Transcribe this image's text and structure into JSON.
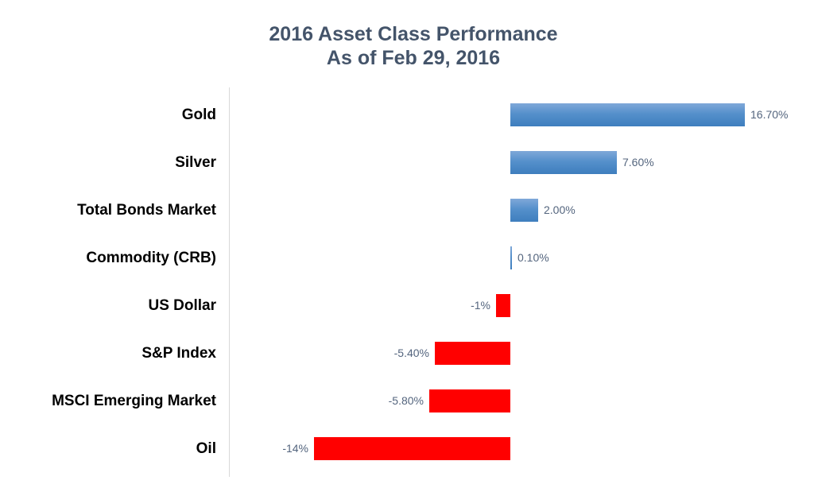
{
  "title": {
    "line1": "2016 Asset Class Performance",
    "line2": "As of Feb 29, 2016"
  },
  "chart_data": {
    "type": "bar",
    "orientation": "horizontal",
    "title": "2016 Asset Class Performance",
    "subtitle": "As of Feb 29, 2016",
    "categories": [
      "Gold",
      "Silver",
      "Total Bonds Market",
      "Commodity (CRB)",
      "US Dollar",
      "S&P Index",
      "MSCI Emerging Market",
      "Oil"
    ],
    "values": [
      16.7,
      7.6,
      2.0,
      0.1,
      -1.0,
      -5.4,
      -5.8,
      -14.0
    ],
    "value_labels": [
      "16.70%",
      "7.60%",
      "2.00%",
      "0.10%",
      "-1%",
      "-5.40%",
      "-5.80%",
      "-14%"
    ],
    "unit": "percent",
    "xlim": [
      -16,
      18
    ],
    "grid": false,
    "legend": false,
    "colors": {
      "positive_gradient_top": "#7FA8D9",
      "positive_gradient_bottom": "#3E7EBE",
      "negative": "#FF0000",
      "title": "#44546A",
      "value_label": "#54657E",
      "category_label": "#000000",
      "axis_line": "#D9D9D9"
    }
  }
}
